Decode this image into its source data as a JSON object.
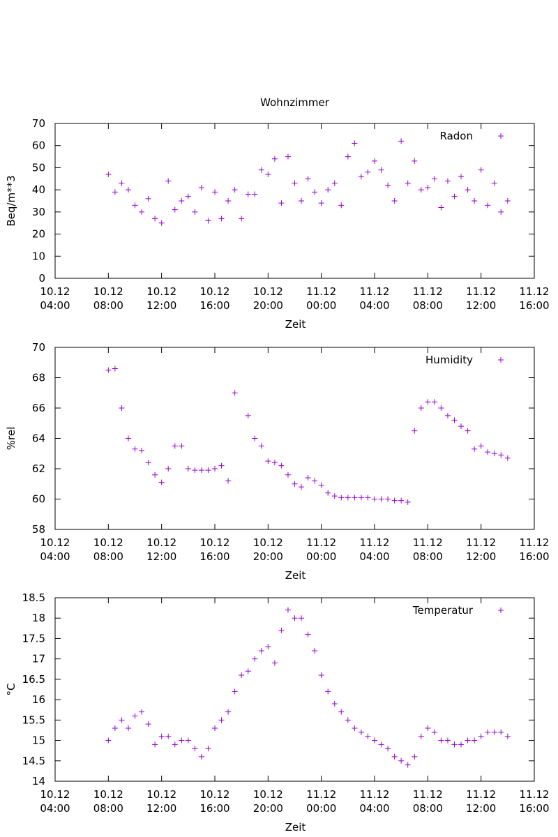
{
  "chart_data": [
    {
      "type": "scatter",
      "title": "Wohnzimmer",
      "x_label": "Zeit",
      "y_label": "Beq/m**3",
      "xlim": [
        "10.12 04:00",
        "11.12 16:00"
      ],
      "xticks": [
        {
          "value": "10.12 04:00",
          "label": "10.12\n04:00"
        },
        {
          "value": "10.12 08:00",
          "label": "10.12\n08:00"
        },
        {
          "value": "10.12 12:00",
          "label": "10.12\n12:00"
        },
        {
          "value": "10.12 16:00",
          "label": "10.12\n16:00"
        },
        {
          "value": "10.12 20:00",
          "label": "10.12\n20:00"
        },
        {
          "value": "11.12 00:00",
          "label": "11.12\n00:00"
        },
        {
          "value": "11.12 04:00",
          "label": "11.12\n04:00"
        },
        {
          "value": "11.12 08:00",
          "label": "11.12\n08:00"
        },
        {
          "value": "11.12 12:00",
          "label": "11.12\n12:00"
        },
        {
          "value": "11.12 16:00",
          "label": "11.12\n16:00"
        }
      ],
      "ylim": [
        0,
        70
      ],
      "yticks": [
        0,
        10,
        20,
        30,
        40,
        50,
        60,
        70
      ],
      "legend": "top-right",
      "x": [
        "10.12 08:00",
        "10.12 08:30",
        "10.12 09:00",
        "10.12 09:30",
        "10.12 10:00",
        "10.12 10:30",
        "10.12 11:00",
        "10.12 11:30",
        "10.12 12:00",
        "10.12 12:30",
        "10.12 13:00",
        "10.12 13:30",
        "10.12 14:00",
        "10.12 14:30",
        "10.12 15:00",
        "10.12 15:30",
        "10.12 16:00",
        "10.12 16:30",
        "10.12 17:00",
        "10.12 17:30",
        "10.12 18:00",
        "10.12 18:30",
        "10.12 19:00",
        "10.12 19:30",
        "10.12 20:00",
        "10.12 20:30",
        "10.12 21:00",
        "10.12 21:30",
        "10.12 22:00",
        "10.12 22:30",
        "10.12 23:00",
        "10.12 23:30",
        "11.12 00:00",
        "11.12 00:30",
        "11.12 01:00",
        "11.12 01:30",
        "11.12 02:00",
        "11.12 02:30",
        "11.12 03:00",
        "11.12 03:30",
        "11.12 04:00",
        "11.12 04:30",
        "11.12 05:00",
        "11.12 05:30",
        "11.12 06:00",
        "11.12 06:30",
        "11.12 07:00",
        "11.12 07:30",
        "11.12 08:00",
        "11.12 08:30",
        "11.12 09:00",
        "11.12 09:30",
        "11.12 10:00",
        "11.12 10:30",
        "11.12 11:00",
        "11.12 11:30",
        "11.12 12:00",
        "11.12 12:30",
        "11.12 13:00",
        "11.12 13:30",
        "11.12 14:00"
      ],
      "series": [
        {
          "name": "Radon",
          "color": "#9400d3",
          "values": [
            47,
            39,
            43,
            40,
            33,
            30,
            36,
            27,
            25,
            44,
            31,
            35,
            37,
            30,
            41,
            26,
            39,
            27,
            35,
            40,
            27,
            38,
            38,
            49,
            47,
            54,
            34,
            55,
            43,
            35,
            45,
            39,
            34,
            40,
            43,
            33,
            55,
            61,
            46,
            48,
            53,
            49,
            42,
            35,
            62,
            43,
            53,
            40,
            41,
            45,
            32,
            44,
            37,
            46,
            40,
            35,
            49,
            33,
            43,
            30,
            35
          ]
        }
      ]
    },
    {
      "type": "scatter",
      "x_label": "Zeit",
      "y_label": "%rel",
      "xlim": [
        "10.12 04:00",
        "11.12 16:00"
      ],
      "xticks": [
        {
          "value": "10.12 04:00",
          "label": "10.12\n04:00"
        },
        {
          "value": "10.12 08:00",
          "label": "10.12\n08:00"
        },
        {
          "value": "10.12 12:00",
          "label": "10.12\n12:00"
        },
        {
          "value": "10.12 16:00",
          "label": "10.12\n16:00"
        },
        {
          "value": "10.12 20:00",
          "label": "10.12\n20:00"
        },
        {
          "value": "11.12 00:00",
          "label": "11.12\n00:00"
        },
        {
          "value": "11.12 04:00",
          "label": "11.12\n04:00"
        },
        {
          "value": "11.12 08:00",
          "label": "11.12\n08:00"
        },
        {
          "value": "11.12 12:00",
          "label": "11.12\n12:00"
        },
        {
          "value": "11.12 16:00",
          "label": "11.12\n16:00"
        }
      ],
      "ylim": [
        58,
        70
      ],
      "yticks": [
        58,
        60,
        62,
        64,
        66,
        68,
        70
      ],
      "legend": "top-right",
      "x": [
        "10.12 08:00",
        "10.12 08:30",
        "10.12 09:00",
        "10.12 09:30",
        "10.12 10:00",
        "10.12 10:30",
        "10.12 11:00",
        "10.12 11:30",
        "10.12 12:00",
        "10.12 12:30",
        "10.12 13:00",
        "10.12 13:30",
        "10.12 14:00",
        "10.12 14:30",
        "10.12 15:00",
        "10.12 15:30",
        "10.12 16:00",
        "10.12 16:30",
        "10.12 17:00",
        "10.12 17:30",
        "10.12 18:00",
        "10.12 18:30",
        "10.12 19:00",
        "10.12 19:30",
        "10.12 20:00",
        "10.12 20:30",
        "10.12 21:00",
        "10.12 21:30",
        "10.12 22:00",
        "10.12 22:30",
        "10.12 23:00",
        "10.12 23:30",
        "11.12 00:00",
        "11.12 00:30",
        "11.12 01:00",
        "11.12 01:30",
        "11.12 02:00",
        "11.12 02:30",
        "11.12 03:00",
        "11.12 03:30",
        "11.12 04:00",
        "11.12 04:30",
        "11.12 05:00",
        "11.12 05:30",
        "11.12 06:00",
        "11.12 06:30",
        "11.12 07:00",
        "11.12 07:30",
        "11.12 08:00",
        "11.12 08:30",
        "11.12 09:00",
        "11.12 09:30",
        "11.12 10:00",
        "11.12 10:30",
        "11.12 11:00",
        "11.12 11:30",
        "11.12 12:00",
        "11.12 12:30",
        "11.12 13:00",
        "11.12 13:30",
        "11.12 14:00"
      ],
      "series": [
        {
          "name": "Humidity",
          "color": "#9400d3",
          "values": [
            68.5,
            68.6,
            66,
            64,
            63.3,
            63.2,
            62.4,
            61.6,
            61.1,
            62,
            63.5,
            63.5,
            62,
            61.9,
            61.9,
            61.9,
            62,
            62.2,
            61.2,
            67,
            null,
            65.5,
            64,
            63.5,
            62.5,
            62.4,
            62.2,
            61.6,
            61,
            60.8,
            61.4,
            61.2,
            60.9,
            60.4,
            60.2,
            60.1,
            60.1,
            60.1,
            60.1,
            60.1,
            60,
            60,
            60,
            59.9,
            59.9,
            59.8,
            64.5,
            66,
            66.4,
            66.4,
            66,
            65.5,
            65.2,
            64.8,
            64.5,
            63.3,
            63.5,
            63.1,
            63,
            62.9,
            62.7
          ]
        }
      ]
    },
    {
      "type": "scatter",
      "x_label": "Zeit",
      "y_label": "°C",
      "xlim": [
        "10.12 04:00",
        "11.12 16:00"
      ],
      "xticks": [
        {
          "value": "10.12 04:00",
          "label": "10.12\n04:00"
        },
        {
          "value": "10.12 08:00",
          "label": "10.12\n08:00"
        },
        {
          "value": "10.12 12:00",
          "label": "10.12\n12:00"
        },
        {
          "value": "10.12 16:00",
          "label": "10.12\n16:00"
        },
        {
          "value": "10.12 20:00",
          "label": "10.12\n20:00"
        },
        {
          "value": "11.12 00:00",
          "label": "11.12\n00:00"
        },
        {
          "value": "11.12 04:00",
          "label": "11.12\n04:00"
        },
        {
          "value": "11.12 08:00",
          "label": "11.12\n08:00"
        },
        {
          "value": "11.12 12:00",
          "label": "11.12\n12:00"
        },
        {
          "value": "11.12 16:00",
          "label": "11.12\n16:00"
        }
      ],
      "ylim": [
        14,
        18.5
      ],
      "yticks": [
        14,
        14.5,
        15,
        15.5,
        16,
        16.5,
        17,
        17.5,
        18,
        18.5
      ],
      "legend": "top-right",
      "x": [
        "10.12 08:00",
        "10.12 08:30",
        "10.12 09:00",
        "10.12 09:30",
        "10.12 10:00",
        "10.12 10:30",
        "10.12 11:00",
        "10.12 11:30",
        "10.12 12:00",
        "10.12 12:30",
        "10.12 13:00",
        "10.12 13:30",
        "10.12 14:00",
        "10.12 14:30",
        "10.12 15:00",
        "10.12 15:30",
        "10.12 16:00",
        "10.12 16:30",
        "10.12 17:00",
        "10.12 17:30",
        "10.12 18:00",
        "10.12 18:30",
        "10.12 19:00",
        "10.12 19:30",
        "10.12 20:00",
        "10.12 20:30",
        "10.12 21:00",
        "10.12 21:30",
        "10.12 22:00",
        "10.12 22:30",
        "10.12 23:00",
        "10.12 23:30",
        "11.12 00:00",
        "11.12 00:30",
        "11.12 01:00",
        "11.12 01:30",
        "11.12 02:00",
        "11.12 02:30",
        "11.12 03:00",
        "11.12 03:30",
        "11.12 04:00",
        "11.12 04:30",
        "11.12 05:00",
        "11.12 05:30",
        "11.12 06:00",
        "11.12 06:30",
        "11.12 07:00",
        "11.12 07:30",
        "11.12 08:00",
        "11.12 08:30",
        "11.12 09:00",
        "11.12 09:30",
        "11.12 10:00",
        "11.12 10:30",
        "11.12 11:00",
        "11.12 11:30",
        "11.12 12:00",
        "11.12 12:30",
        "11.12 13:00",
        "11.12 13:30",
        "11.12 14:00"
      ],
      "series": [
        {
          "name": "Temperatur",
          "color": "#9400d3",
          "values": [
            15,
            15.3,
            15.5,
            15.3,
            15.6,
            15.7,
            15.4,
            14.9,
            15.1,
            15.1,
            14.9,
            15,
            15,
            14.8,
            14.6,
            14.8,
            15.3,
            15.5,
            15.7,
            16.2,
            16.6,
            16.7,
            17,
            17.2,
            17.3,
            16.9,
            17.7,
            18.2,
            18,
            18,
            17.6,
            17.2,
            16.6,
            16.2,
            15.9,
            15.7,
            15.5,
            15.3,
            15.2,
            15.1,
            15,
            14.9,
            14.8,
            14.6,
            14.5,
            14.4,
            14.6,
            15.1,
            15.3,
            15.2,
            15,
            15,
            14.9,
            14.9,
            15,
            15,
            15.1,
            15.2,
            15.2,
            15.2,
            15.1
          ]
        }
      ]
    }
  ]
}
